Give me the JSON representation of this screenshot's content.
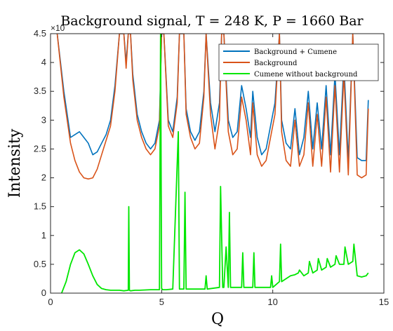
{
  "chart_data": {
    "type": "line",
    "title": "Background signal, T = 248 K, P = 1660 Bar",
    "xlabel": "Q",
    "ylabel": "Intensity",
    "xlim": [
      0,
      15
    ],
    "ylim": [
      0,
      4.5
    ],
    "y_exponent_label": "×10",
    "xticks": [
      0,
      5,
      10,
      15
    ],
    "yticks": [
      0,
      0.5,
      1,
      1.5,
      2,
      2.5,
      3,
      3.5,
      4,
      4.5
    ],
    "xtick_labels": [
      "0",
      "5",
      "10",
      "15"
    ],
    "ytick_labels": [
      "0",
      "0.5",
      "1",
      "1.5",
      "2",
      "2.5",
      "3",
      "3.5",
      "4",
      "4.5"
    ],
    "grid": false,
    "legend_position": "top-right",
    "series": [
      {
        "name": "Background + Cumene",
        "color": "#0072BD",
        "x": [
          0.3,
          0.6,
          0.9,
          1.1,
          1.3,
          1.5,
          1.7,
          1.9,
          2.1,
          2.3,
          2.5,
          2.7,
          2.9,
          3.1,
          3.3,
          3.4,
          3.5,
          3.6,
          3.7,
          3.9,
          4.1,
          4.3,
          4.5,
          4.7,
          4.9,
          5.0,
          5.1,
          5.3,
          5.5,
          5.7,
          5.8,
          5.9,
          6.0,
          6.1,
          6.3,
          6.5,
          6.7,
          6.9,
          7.0,
          7.2,
          7.4,
          7.6,
          7.7,
          7.8,
          8.0,
          8.2,
          8.4,
          8.6,
          8.8,
          9.0,
          9.1,
          9.3,
          9.5,
          9.7,
          9.9,
          10.1,
          10.3,
          10.4,
          10.6,
          10.8,
          11.0,
          11.2,
          11.4,
          11.6,
          11.8,
          12.0,
          12.2,
          12.4,
          12.6,
          12.8,
          13.0,
          13.2,
          13.4,
          13.6,
          13.8,
          14.0,
          14.2,
          14.3
        ],
        "y": [
          4.5,
          3.5,
          2.7,
          2.75,
          2.8,
          2.7,
          2.6,
          2.4,
          2.45,
          2.6,
          2.75,
          3.0,
          3.6,
          4.5,
          4.5,
          4.0,
          4.5,
          4.5,
          3.8,
          3.1,
          2.8,
          2.6,
          2.5,
          2.6,
          3.0,
          4.5,
          4.5,
          3.0,
          2.8,
          3.4,
          4.5,
          4.5,
          4.5,
          3.2,
          2.8,
          2.65,
          2.8,
          3.5,
          4.5,
          3.3,
          2.8,
          3.3,
          4.5,
          4.5,
          3.0,
          2.7,
          2.8,
          3.6,
          3.2,
          2.7,
          3.5,
          2.7,
          2.4,
          2.5,
          2.9,
          3.3,
          4.5,
          3.0,
          2.6,
          2.5,
          3.2,
          2.4,
          2.7,
          3.5,
          2.5,
          3.3,
          2.5,
          3.6,
          2.4,
          3.8,
          2.4,
          4.0,
          2.3,
          4.5,
          2.35,
          2.3,
          2.3,
          3.35
        ]
      },
      {
        "name": "Background",
        "color": "#D95319",
        "x": [
          0.3,
          0.6,
          0.9,
          1.1,
          1.3,
          1.5,
          1.7,
          1.9,
          2.1,
          2.3,
          2.5,
          2.7,
          2.9,
          3.1,
          3.3,
          3.4,
          3.5,
          3.6,
          3.7,
          3.9,
          4.1,
          4.3,
          4.5,
          4.7,
          4.9,
          5.0,
          5.1,
          5.3,
          5.5,
          5.7,
          5.8,
          5.9,
          6.0,
          6.1,
          6.3,
          6.5,
          6.7,
          6.9,
          7.0,
          7.2,
          7.4,
          7.6,
          7.7,
          7.8,
          8.0,
          8.2,
          8.4,
          8.6,
          8.8,
          9.0,
          9.1,
          9.3,
          9.5,
          9.7,
          9.9,
          10.1,
          10.3,
          10.4,
          10.6,
          10.8,
          11.0,
          11.2,
          11.4,
          11.6,
          11.8,
          12.0,
          12.2,
          12.4,
          12.6,
          12.8,
          13.0,
          13.2,
          13.4,
          13.6,
          13.8,
          14.0,
          14.2,
          14.3
        ],
        "y": [
          4.5,
          3.4,
          2.6,
          2.3,
          2.1,
          2.0,
          1.98,
          2.0,
          2.15,
          2.4,
          2.65,
          2.9,
          3.5,
          4.5,
          4.5,
          3.9,
          4.5,
          4.5,
          3.7,
          3.0,
          2.7,
          2.5,
          2.4,
          2.5,
          2.9,
          4.5,
          4.5,
          2.9,
          2.7,
          3.3,
          4.5,
          4.5,
          4.5,
          3.1,
          2.7,
          2.5,
          2.6,
          3.4,
          4.5,
          3.1,
          2.5,
          3.0,
          4.5,
          4.5,
          2.8,
          2.4,
          2.5,
          3.4,
          3.0,
          2.4,
          3.3,
          2.4,
          2.2,
          2.3,
          2.7,
          3.1,
          4.5,
          2.8,
          2.3,
          2.2,
          3.0,
          2.2,
          2.4,
          3.3,
          2.2,
          3.1,
          2.2,
          3.4,
          2.1,
          3.6,
          2.1,
          3.8,
          2.05,
          4.5,
          2.05,
          2.0,
          2.05,
          3.2
        ]
      },
      {
        "name": "Cumene without background",
        "color": "#00E600",
        "x": [
          0.5,
          0.7,
          0.9,
          1.1,
          1.3,
          1.5,
          1.7,
          1.9,
          2.1,
          2.3,
          2.5,
          2.7,
          2.9,
          3.1,
          3.3,
          3.5,
          3.52,
          3.55,
          3.6,
          3.8,
          4.0,
          4.5,
          4.9,
          4.95,
          5.0,
          5.05,
          5.2,
          5.5,
          5.75,
          5.8,
          5.85,
          6.0,
          6.05,
          6.1,
          6.5,
          6.95,
          7.0,
          7.05,
          7.6,
          7.65,
          7.7,
          7.75,
          7.8,
          7.9,
          8.0,
          8.05,
          8.1,
          8.3,
          8.6,
          8.65,
          8.7,
          9.1,
          9.15,
          9.2,
          9.9,
          9.95,
          10.0,
          10.3,
          10.35,
          10.4,
          10.6,
          10.8,
          11.0,
          11.15,
          11.2,
          11.4,
          11.6,
          11.65,
          11.8,
          12.0,
          12.05,
          12.2,
          12.4,
          12.45,
          12.6,
          12.8,
          12.85,
          13.0,
          13.2,
          13.25,
          13.4,
          13.6,
          13.65,
          13.8,
          14.0,
          14.2,
          14.3
        ],
        "y": [
          0.0,
          0.2,
          0.5,
          0.7,
          0.75,
          0.68,
          0.5,
          0.3,
          0.15,
          0.08,
          0.06,
          0.05,
          0.05,
          0.05,
          0.04,
          0.05,
          1.5,
          0.05,
          0.04,
          0.05,
          0.05,
          0.06,
          0.06,
          4.5,
          0.08,
          0.06,
          0.06,
          0.07,
          2.8,
          0.07,
          0.07,
          0.07,
          1.75,
          0.07,
          0.07,
          0.07,
          0.3,
          0.07,
          0.1,
          1.85,
          1.0,
          0.1,
          0.1,
          0.8,
          0.1,
          1.4,
          0.1,
          0.1,
          0.1,
          0.7,
          0.1,
          0.1,
          0.7,
          0.1,
          0.1,
          0.3,
          0.1,
          0.2,
          0.85,
          0.2,
          0.25,
          0.3,
          0.32,
          0.35,
          0.4,
          0.3,
          0.35,
          0.55,
          0.35,
          0.4,
          0.6,
          0.4,
          0.45,
          0.6,
          0.45,
          0.5,
          0.65,
          0.5,
          0.5,
          0.8,
          0.5,
          0.55,
          0.85,
          0.3,
          0.28,
          0.3,
          0.35
        ]
      }
    ]
  }
}
